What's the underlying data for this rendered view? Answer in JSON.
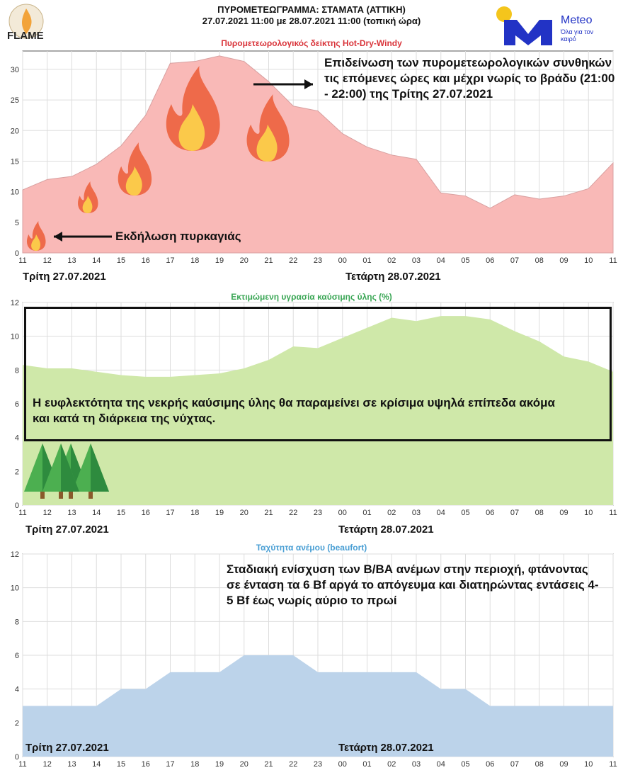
{
  "header": {
    "line1": "ΠΥΡΟΜΕΤΕΩΓΡΑΜΜΑ: ΣΤΑΜΑΤΑ (ΑΤΤΙΚΗ)",
    "line2": "27.07.2021 11:00 με 28.07.2021 11:00 (τοπική ώρα)",
    "logo_left": "FLAME",
    "logo_right": "Meteo",
    "logo_right_tagline": "Όλα για τον καιρό"
  },
  "chart_data": [
    {
      "type": "area",
      "title": "Πυρομετεωρολογικός δείκτης Hot-Dry-Windy",
      "title_color": "#d9343a",
      "fill": "#f9b9b7",
      "x": [
        "11",
        "12",
        "13",
        "14",
        "15",
        "16",
        "17",
        "18",
        "19",
        "20",
        "21",
        "22",
        "23",
        "00",
        "01",
        "02",
        "03",
        "04",
        "05",
        "06",
        "07",
        "08",
        "09",
        "10",
        "11"
      ],
      "values": [
        10.3,
        12.0,
        12.5,
        14.5,
        17.5,
        22.5,
        31.0,
        31.3,
        32.2,
        31.3,
        28.0,
        24.0,
        23.2,
        19.5,
        17.3,
        16.0,
        15.3,
        9.8,
        9.3,
        7.3,
        9.5,
        8.8,
        9.3,
        10.5,
        14.7
      ],
      "ylim": [
        0,
        33
      ],
      "yticks": [
        0,
        5,
        10,
        15,
        20,
        25,
        30
      ],
      "grid": true,
      "date_labels": [
        "Τρίτη 27.07.2021",
        "Τετάρτη 28.07.2021"
      ],
      "annotations": [
        "Επιδείνωση των πυρομετεωρολογικών συνθηκών τις επόμενες ώρες και μέχρι νωρίς το βράδυ (21:00 - 22:00) της Τρίτης 27.07.2021",
        "Εκδήλωση πυρκαγιάς"
      ]
    },
    {
      "type": "area",
      "title": "Εκτιμώμενη υγρασία καύσιμης ύλης (%)",
      "title_color": "#3aa655",
      "fill": "#cfe8a9",
      "x": [
        "11",
        "12",
        "13",
        "14",
        "15",
        "16",
        "17",
        "18",
        "19",
        "20",
        "21",
        "22",
        "23",
        "00",
        "01",
        "02",
        "03",
        "04",
        "05",
        "06",
        "07",
        "08",
        "09",
        "10",
        "11"
      ],
      "values": [
        8.3,
        8.1,
        8.1,
        7.9,
        7.7,
        7.6,
        7.6,
        7.7,
        7.8,
        8.1,
        8.6,
        9.4,
        9.3,
        9.9,
        10.5,
        11.1,
        10.9,
        11.2,
        11.2,
        11.0,
        10.3,
        9.7,
        8.8,
        8.5,
        7.9
      ],
      "ylim": [
        0,
        12
      ],
      "yticks": [
        0,
        2,
        4,
        6,
        8,
        10,
        12
      ],
      "grid": true,
      "date_labels": [
        "Τρίτη 27.07.2021",
        "Τετάρτη 28.07.2021"
      ],
      "annotations": [
        "Η ευφλεκτότητα της νεκρής καύσιμης ύλης θα παραμείνει σε κρίσιμα υψηλά επίπεδα ακόμα και κατά τη διάρκεια της νύχτας."
      ]
    },
    {
      "type": "area",
      "title": "Ταχύτητα ανέμου (beaufort)",
      "title_color": "#4a9fd4",
      "fill": "#bcd3ea",
      "x": [
        "11",
        "12",
        "13",
        "14",
        "15",
        "16",
        "17",
        "18",
        "19",
        "20",
        "21",
        "22",
        "23",
        "00",
        "01",
        "02",
        "03",
        "04",
        "05",
        "06",
        "07",
        "08",
        "09",
        "10",
        "11"
      ],
      "values": [
        3,
        3,
        3,
        3,
        4,
        4,
        5,
        5,
        5,
        6,
        6,
        6,
        5,
        5,
        5,
        5,
        5,
        4,
        4,
        3,
        3,
        3,
        3,
        3,
        3
      ],
      "ylim": [
        0,
        12
      ],
      "yticks": [
        0,
        2,
        4,
        6,
        8,
        10,
        12
      ],
      "grid": true,
      "date_labels": [
        "Τρίτη 27.07.2021",
        "Τετάρτη 28.07.2021"
      ],
      "annotations": [
        "Σταδιακή ενίσχυση των Β/ΒΑ ανέμων στην περιοχή, φτάνοντας σε ένταση τα 6 Bf αργά το απόγευμα και διατηρώντας εντάσεις 4-5 Bf έως νωρίς αύριο το πρωί"
      ]
    }
  ]
}
